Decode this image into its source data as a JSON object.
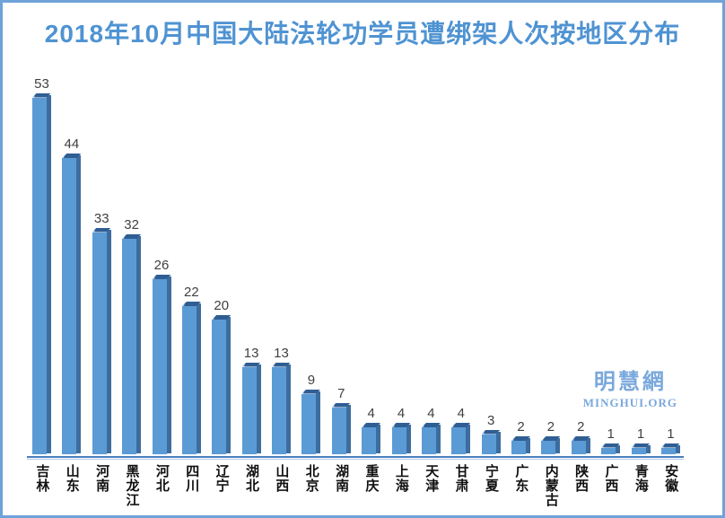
{
  "title": "2018年10月中国大陆法轮功学员遭绑架人次按地区分布",
  "watermark": {
    "cjk_name": "明慧網",
    "site": "MINGHUI.ORG"
  },
  "colors": {
    "title": "#4f93d2",
    "frame_border": "#6ea2d8",
    "bar_face": "#5b9bd5",
    "bar_side": "#3d6d9e",
    "bar_top": "#2f5e93",
    "bar_top_highlight": "#9cc0e8",
    "axis_line": "#4a7ebb",
    "axis_line_light": "#adc9ea",
    "value_label": "#404040",
    "category_label": "#111111",
    "watermark": "#7aa8dc"
  },
  "chart_data": {
    "type": "bar",
    "title": "2018年10月中国大陆法轮功学员遭绑架人次按地区分布",
    "categories": [
      "吉林",
      "山东",
      "河南",
      "黑龙江",
      "河北",
      "四川",
      "辽宁",
      "湖北",
      "山西",
      "北京",
      "湖南",
      "重庆",
      "上海",
      "天津",
      "甘肃",
      "宁夏",
      "广东",
      "内蒙古",
      "陕西",
      "广西",
      "青海",
      "安徽"
    ],
    "values": [
      53,
      44,
      33,
      32,
      26,
      22,
      20,
      13,
      13,
      9,
      7,
      4,
      4,
      4,
      4,
      3,
      2,
      2,
      2,
      1,
      1,
      1
    ],
    "xlabel": "",
    "ylabel": "",
    "ylim": [
      0,
      55
    ],
    "grid": false,
    "legend": false,
    "value_labels_shown": true,
    "bar_orientation": "vertical",
    "bar_style": "3d-box",
    "bar_color": "#5b9bd5"
  }
}
